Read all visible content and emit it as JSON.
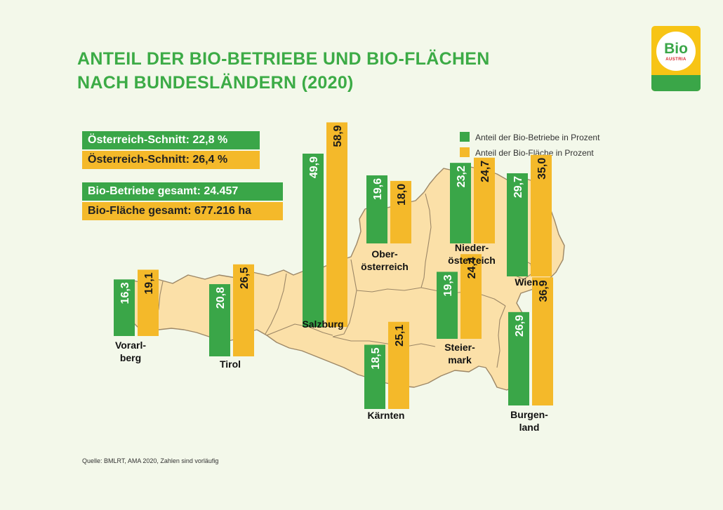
{
  "title": {
    "line1": "ANTEIL DER BIO-BETRIEBE UND BIO-FLÄCHEN",
    "line2": "NACH BUNDESLÄNDERN (2020)"
  },
  "logo": {
    "text": "Bio",
    "subtext": "AUSTRIA"
  },
  "stats": {
    "avg_betriebe": "Österreich-Schnitt: 22,8 %",
    "avg_flaeche": "Österreich-Schnitt: 26,4 %",
    "total_betriebe": "Bio-Betriebe gesamt: 24.457",
    "total_flaeche": "Bio-Fläche gesamt: 677.216 ha"
  },
  "legend": {
    "betriebe": "Anteil der Bio-Betriebe in Prozent",
    "flaeche": "Anteil der Bio-Fläche in Prozent"
  },
  "colors": {
    "green": "#3aa648",
    "yellow": "#f4b92a",
    "title": "#3cab46",
    "map_fill": "#fbe0a8",
    "map_stroke": "#9c8767"
  },
  "source": "Quelle: BMLRT, AMA 2020, Zahlen sind vorläufig",
  "chart_data": {
    "type": "bar",
    "title": "ANTEIL DER BIO-BETRIEBE UND BIO-FLÄCHEN NACH BUNDESLÄNDERN (2020)",
    "unit": "%",
    "categories": [
      {
        "id": "vorarlberg",
        "label": [
          "Vorarl-",
          "berg"
        ]
      },
      {
        "id": "tirol",
        "label": [
          "Tirol"
        ]
      },
      {
        "id": "salzburg",
        "label": [
          "Salzburg"
        ]
      },
      {
        "id": "oberoesterreich",
        "label": [
          "Ober-",
          "österreich"
        ]
      },
      {
        "id": "kaernten",
        "label": [
          "Kärnten"
        ]
      },
      {
        "id": "niederoesterreich",
        "label": [
          "Nieder-",
          "österreich"
        ]
      },
      {
        "id": "steiermark",
        "label": [
          "Steier-",
          "mark"
        ]
      },
      {
        "id": "wien",
        "label": [
          "Wien"
        ]
      },
      {
        "id": "burgenland",
        "label": [
          "Burgen-",
          "land"
        ]
      }
    ],
    "series": [
      {
        "name": "Anteil der Bio-Betriebe in Prozent",
        "color": "#3aa648",
        "values": [
          16.3,
          20.8,
          49.9,
          19.6,
          18.5,
          23.2,
          19.3,
          29.7,
          26.9
        ],
        "labels": [
          "16,3",
          "20,8",
          "49,9",
          "19,6",
          "18,5",
          "23,2",
          "19,3",
          "29,7",
          "26,9"
        ]
      },
      {
        "name": "Anteil der Bio-Fläche in Prozent",
        "color": "#f4b92a",
        "values": [
          19.1,
          26.5,
          58.9,
          18.0,
          25.1,
          24.7,
          24.4,
          35.0,
          36.9
        ],
        "labels": [
          "19,1",
          "26,5",
          "58,9",
          "18,0",
          "25,1",
          "24,7",
          "24,4",
          "35,0",
          "36,9"
        ]
      }
    ]
  }
}
